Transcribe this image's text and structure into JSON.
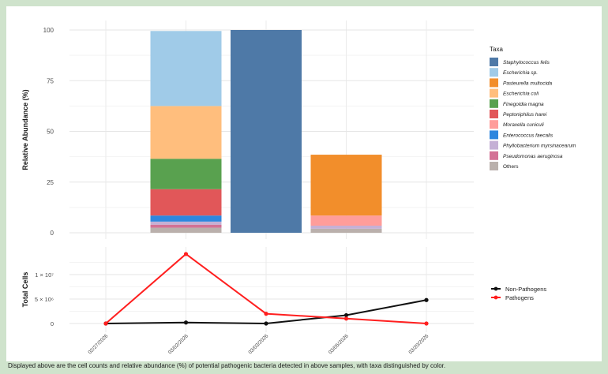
{
  "chart_data": [
    {
      "type": "bar",
      "stacked": true,
      "ylabel": "Relative Abundance (%)",
      "ylim": [
        0,
        100
      ],
      "yticks": [
        0,
        25,
        50,
        75,
        100
      ],
      "grid": true,
      "categories": [
        "02/27/2026",
        "03/02/2026",
        "03/03/2026",
        "03/05/2026",
        "03/20/2026"
      ],
      "legend_title": "Taxa",
      "legend_position": "right",
      "series": [
        {
          "name": "Staphylococcus felis",
          "color": "#4e79a7",
          "values": [
            0,
            0,
            100,
            0,
            0
          ]
        },
        {
          "name": "Escherichia sp.",
          "color": "#a0cbe8",
          "values": [
            0,
            37,
            0,
            0,
            0
          ]
        },
        {
          "name": "Pasteurella multocida",
          "color": "#f28e2b",
          "values": [
            0,
            0,
            0,
            30,
            0
          ]
        },
        {
          "name": "Escherichia coli",
          "color": "#ffbe7d",
          "values": [
            0,
            26,
            0,
            0,
            0
          ]
        },
        {
          "name": "Finegoldia magna",
          "color": "#59a14f",
          "values": [
            0,
            15,
            0,
            0,
            0
          ]
        },
        {
          "name": "Peptoniphilus harei",
          "color": "#e15759",
          "values": [
            0,
            13,
            0,
            0,
            0
          ]
        },
        {
          "name": "Moraxella cuniculi",
          "color": "#ff9d9a",
          "values": [
            0,
            0,
            0,
            5,
            0
          ]
        },
        {
          "name": "Enterococcus faecalis",
          "color": "#2e86de",
          "values": [
            0,
            3,
            0,
            0,
            0
          ]
        },
        {
          "name": "Phyllobacterium myrsinacearum",
          "color": "#c5b0d5",
          "values": [
            0,
            1.5,
            0,
            1.5,
            0
          ]
        },
        {
          "name": "Pseudomonas aeruginosa",
          "color": "#d37295",
          "values": [
            0,
            1.5,
            0,
            0,
            0
          ]
        },
        {
          "name": "Others",
          "color": "#bab0ac",
          "values": [
            0,
            2.5,
            0,
            2,
            0
          ]
        }
      ]
    },
    {
      "type": "line",
      "ylabel": "Total Cells",
      "ylim": [
        -2000000,
        16000000
      ],
      "yticks": [
        0,
        5000000,
        10000000
      ],
      "ytick_labels": [
        "0",
        "5 × 10⁶",
        "1 × 10⁷"
      ],
      "x": [
        "02/27/2026",
        "03/02/2026",
        "03/03/2026",
        "03/05/2026",
        "03/20/2026"
      ],
      "grid": true,
      "legend_position": "right",
      "series": [
        {
          "name": "Non-Pathogens",
          "color": "#111111",
          "values": [
            0,
            200000,
            0,
            1700000,
            4800000
          ]
        },
        {
          "name": "Pathogens",
          "color": "#ff1f1f",
          "values": [
            0,
            14200000,
            2000000,
            1000000,
            0
          ]
        }
      ]
    }
  ],
  "caption": "Displayed above are the cell counts and relative abundance (%) of potential pathogenic bacteria detected in above samples, with taxa distinguished by color."
}
